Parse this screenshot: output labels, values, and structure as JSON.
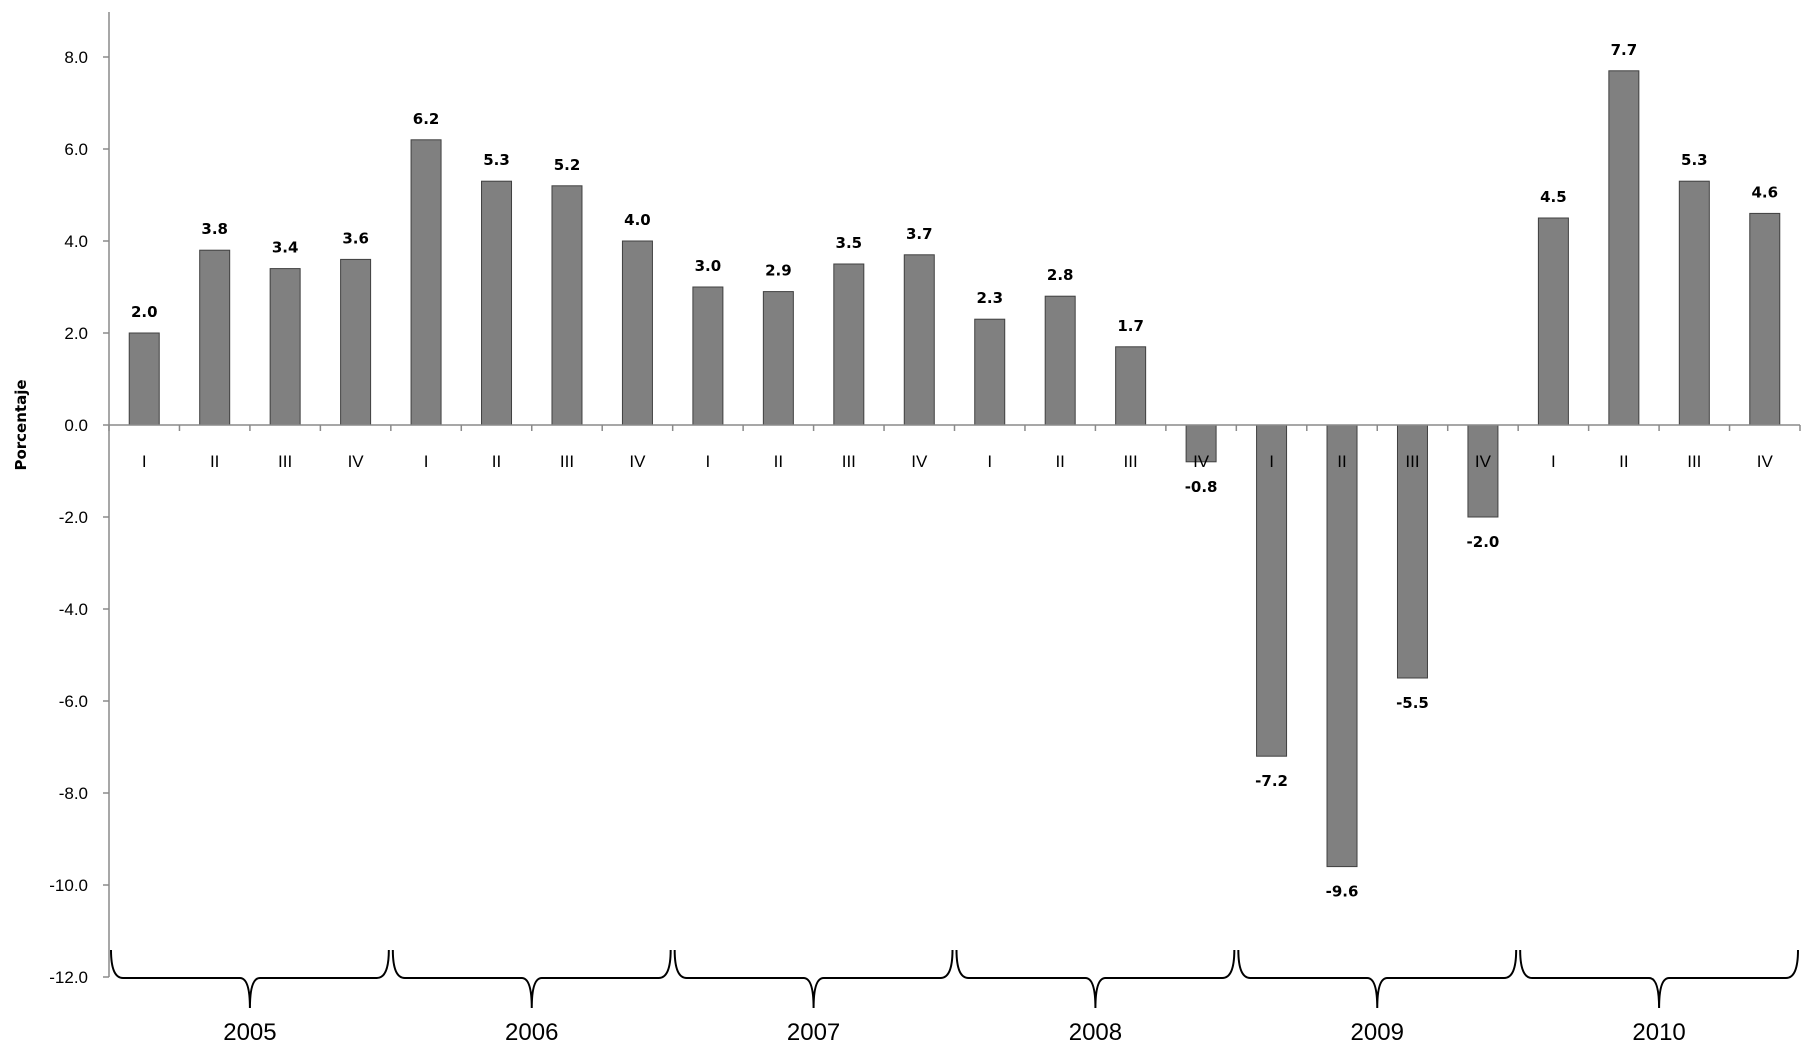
{
  "chart_data": {
    "type": "bar",
    "title": "",
    "xlabel": "",
    "ylabel": "Porcentaje",
    "ylim": [
      -12,
      9
    ],
    "y_ticks": [
      "8.0",
      "6.0",
      "4.0",
      "2.0",
      "0.0",
      "-2.0",
      "-4.0",
      "-6.0",
      "-8.0",
      "-10.0",
      "-12.0"
    ],
    "grid": false,
    "legend": "none",
    "bar_color": "#808080",
    "years": [
      "2005",
      "2006",
      "2007",
      "2008",
      "2009",
      "2010"
    ],
    "quarters": [
      "I",
      "II",
      "III",
      "IV"
    ],
    "categories": [
      "I",
      "II",
      "III",
      "IV",
      "I",
      "II",
      "III",
      "IV",
      "I",
      "II",
      "III",
      "IV",
      "I",
      "II",
      "III",
      "IV",
      "I",
      "II",
      "III",
      "IV",
      "I",
      "II",
      "III",
      "IV"
    ],
    "values": [
      2.0,
      3.8,
      3.4,
      3.6,
      6.2,
      5.3,
      5.2,
      4.0,
      3.0,
      2.9,
      3.5,
      3.7,
      2.3,
      2.8,
      1.7,
      -0.8,
      -7.2,
      -9.6,
      -5.5,
      -2.0,
      4.5,
      7.7,
      5.3,
      4.6
    ],
    "value_labels": [
      "2.0",
      "3.8",
      "3.4",
      "3.6",
      "6.2",
      "5.3",
      "5.2",
      "4.0",
      "3.0",
      "2.9",
      "3.5",
      "3.7",
      "2.3",
      "2.8",
      "1.7",
      "-0.8",
      "-7.2",
      "-9.6",
      "-5.5",
      "-2.0",
      "4.5",
      "7.7",
      "5.3",
      "4.6"
    ]
  }
}
